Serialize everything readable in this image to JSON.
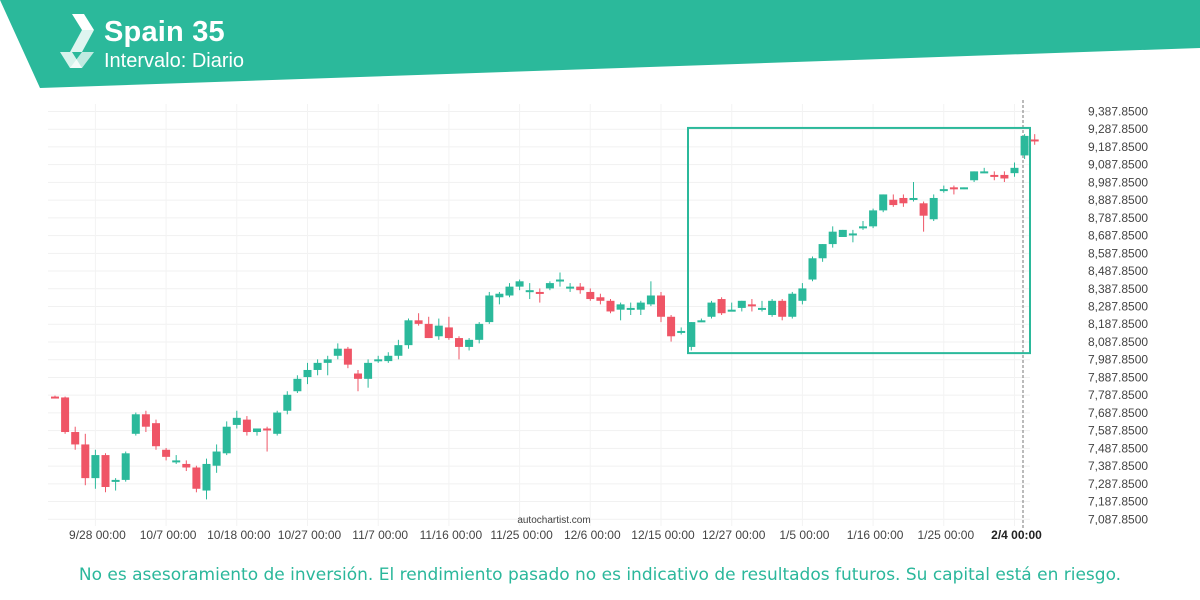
{
  "header": {
    "title": "Spain 35",
    "subtitle": "Intervalo: Diario",
    "brand_color": "#2bb99b",
    "logo_icon": "autochartist-chevron-logo-icon"
  },
  "watermark": "autochartist.com",
  "disclaimer": "No es asesoramiento de inversión. El rendimiento pasado no es indicativo de resultados futuros. Su capital está en riesgo.",
  "chart_data": {
    "type": "candlestick",
    "up_color": "#2bb99b",
    "down_color": "#ef5566",
    "grid": true,
    "ylim": [
      7050,
      9430
    ],
    "y_ticks": [
      "9,387.8500",
      "9,287.8500",
      "9,187.8500",
      "9,087.8500",
      "8,987.8500",
      "8,887.8500",
      "8,787.8500",
      "8,687.8500",
      "8,587.8500",
      "8,487.8500",
      "8,387.8500",
      "8,287.8500",
      "8,187.8500",
      "8,087.8500",
      "7,987.8500",
      "7,887.8500",
      "7,787.8500",
      "7,687.8500",
      "7,587.8500",
      "7,487.8500",
      "7,387.8500",
      "7,287.8500",
      "7,187.8500",
      "7,087.8500"
    ],
    "x_ticks": [
      {
        "label": "9/28 00:00",
        "index": 4
      },
      {
        "label": "10/7 00:00",
        "index": 11
      },
      {
        "label": "10/18 00:00",
        "index": 18
      },
      {
        "label": "10/27 00:00",
        "index": 25
      },
      {
        "label": "11/7 00:00",
        "index": 32
      },
      {
        "label": "11/16 00:00",
        "index": 39
      },
      {
        "label": "11/25 00:00",
        "index": 46
      },
      {
        "label": "12/6 00:00",
        "index": 53
      },
      {
        "label": "12/15 00:00",
        "index": 60
      },
      {
        "label": "12/27 00:00",
        "index": 67
      },
      {
        "label": "1/5 00:00",
        "index": 74
      },
      {
        "label": "1/16 00:00",
        "index": 81
      },
      {
        "label": "1/25 00:00",
        "index": 88
      },
      {
        "label": "2/4 00:00",
        "index": 95,
        "bold": true
      }
    ],
    "candles": [
      [
        7780,
        7785,
        7770,
        7775
      ],
      [
        7775,
        7780,
        7570,
        7580
      ],
      [
        7580,
        7610,
        7480,
        7510
      ],
      [
        7510,
        7570,
        7280,
        7320
      ],
      [
        7320,
        7480,
        7260,
        7450
      ],
      [
        7450,
        7460,
        7240,
        7270
      ],
      [
        7300,
        7320,
        7250,
        7310
      ],
      [
        7310,
        7470,
        7300,
        7460
      ],
      [
        7570,
        7690,
        7560,
        7680
      ],
      [
        7680,
        7700,
        7580,
        7610
      ],
      [
        7630,
        7650,
        7480,
        7500
      ],
      [
        7480,
        7490,
        7420,
        7440
      ],
      [
        7420,
        7450,
        7400,
        7420
      ],
      [
        7400,
        7420,
        7360,
        7380
      ],
      [
        7380,
        7390,
        7240,
        7260
      ],
      [
        7250,
        7430,
        7200,
        7400
      ],
      [
        7390,
        7510,
        7350,
        7470
      ],
      [
        7460,
        7640,
        7450,
        7610
      ],
      [
        7620,
        7700,
        7600,
        7660
      ],
      [
        7650,
        7670,
        7560,
        7580
      ],
      [
        7580,
        7600,
        7560,
        7600
      ],
      [
        7600,
        7610,
        7470,
        7590
      ],
      [
        7570,
        7700,
        7560,
        7690
      ],
      [
        7700,
        7810,
        7680,
        7790
      ],
      [
        7810,
        7900,
        7800,
        7880
      ],
      [
        7890,
        7970,
        7850,
        7930
      ],
      [
        7930,
        7990,
        7900,
        7970
      ],
      [
        7970,
        8010,
        7900,
        7990
      ],
      [
        8010,
        8080,
        7990,
        8050
      ],
      [
        8050,
        8060,
        7940,
        7960
      ],
      [
        7910,
        7930,
        7810,
        7880
      ],
      [
        7880,
        7990,
        7830,
        7970
      ],
      [
        7990,
        8010,
        7970,
        7990
      ],
      [
        7980,
        8030,
        7970,
        8010
      ],
      [
        8010,
        8100,
        7990,
        8070
      ],
      [
        8070,
        8220,
        8050,
        8210
      ],
      [
        8210,
        8250,
        8180,
        8190
      ],
      [
        8190,
        8230,
        8110,
        8110
      ],
      [
        8120,
        8220,
        8100,
        8180
      ],
      [
        8170,
        8230,
        8100,
        8110
      ],
      [
        8110,
        8120,
        7990,
        8060
      ],
      [
        8060,
        8110,
        8040,
        8100
      ],
      [
        8100,
        8200,
        8080,
        8190
      ],
      [
        8200,
        8370,
        8190,
        8350
      ],
      [
        8340,
        8370,
        8300,
        8360
      ],
      [
        8350,
        8420,
        8340,
        8400
      ],
      [
        8400,
        8440,
        8380,
        8430
      ],
      [
        8380,
        8420,
        8330,
        8380
      ],
      [
        8370,
        8390,
        8310,
        8360
      ],
      [
        8390,
        8430,
        8380,
        8420
      ],
      [
        8430,
        8480,
        8400,
        8440
      ],
      [
        8400,
        8420,
        8370,
        8400
      ],
      [
        8400,
        8420,
        8360,
        8380
      ],
      [
        8370,
        8390,
        8320,
        8330
      ],
      [
        8340,
        8360,
        8300,
        8320
      ],
      [
        8320,
        8330,
        8250,
        8260
      ],
      [
        8270,
        8310,
        8210,
        8300
      ],
      [
        8280,
        8310,
        8240,
        8280
      ],
      [
        8270,
        8320,
        8240,
        8310
      ],
      [
        8300,
        8430,
        8290,
        8350
      ],
      [
        8350,
        8370,
        8200,
        8230
      ],
      [
        8230,
        8240,
        8090,
        8120
      ],
      [
        8140,
        8170,
        8130,
        8150
      ],
      [
        8060,
        8200,
        8040,
        8200
      ],
      [
        8200,
        8220,
        8200,
        8210
      ],
      [
        8230,
        8320,
        8220,
        8310
      ],
      [
        8330,
        8340,
        8240,
        8250
      ],
      [
        8270,
        8310,
        8260,
        8270
      ],
      [
        8280,
        8320,
        8260,
        8320
      ],
      [
        8300,
        8330,
        8260,
        8290
      ],
      [
        8270,
        8320,
        8260,
        8280
      ],
      [
        8240,
        8330,
        8230,
        8320
      ],
      [
        8320,
        8330,
        8210,
        8230
      ],
      [
        8230,
        8370,
        8220,
        8360
      ],
      [
        8320,
        8420,
        8300,
        8390
      ],
      [
        8440,
        8570,
        8430,
        8560
      ],
      [
        8560,
        8640,
        8540,
        8640
      ],
      [
        8640,
        8740,
        8620,
        8710
      ],
      [
        8680,
        8720,
        8680,
        8720
      ],
      [
        8690,
        8720,
        8650,
        8700
      ],
      [
        8730,
        8770,
        8720,
        8740
      ],
      [
        8740,
        8840,
        8730,
        8830
      ],
      [
        8830,
        8920,
        8820,
        8920
      ],
      [
        8890,
        8920,
        8850,
        8860
      ],
      [
        8900,
        8920,
        8850,
        8870
      ],
      [
        8900,
        8990,
        8880,
        8900
      ],
      [
        8870,
        8880,
        8710,
        8800
      ],
      [
        8780,
        8920,
        8770,
        8900
      ],
      [
        8940,
        8970,
        8930,
        8950
      ],
      [
        8960,
        8970,
        8920,
        8950
      ],
      [
        8950,
        8960,
        8950,
        8960
      ],
      [
        9000,
        9050,
        8990,
        9050
      ],
      [
        9050,
        9070,
        9040,
        9050
      ],
      [
        9030,
        9050,
        9000,
        9020
      ],
      [
        9030,
        9050,
        8990,
        9010
      ],
      [
        9040,
        9100,
        9020,
        9070
      ],
      [
        9140,
        9260,
        9120,
        9250
      ],
      [
        9230,
        9260,
        9200,
        9220
      ]
    ],
    "pattern_box": {
      "start_index": 64,
      "end_index": 98,
      "top": 9295,
      "bottom": 8025
    },
    "current_index": 97
  }
}
